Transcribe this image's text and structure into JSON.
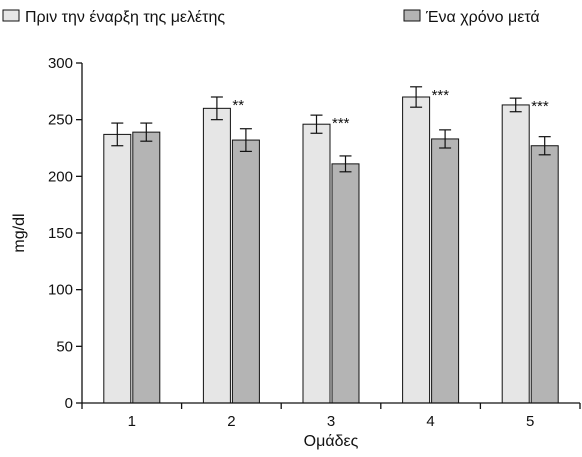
{
  "chart_data": {
    "type": "bar",
    "categories": [
      "1",
      "2",
      "3",
      "4",
      "5"
    ],
    "series": [
      {
        "name": "Πριν την έναρξη της μελέτης",
        "color": "#e6e6e6",
        "values": [
          237,
          260,
          246,
          270,
          263
        ],
        "errors": [
          10,
          10,
          8,
          9,
          6
        ]
      },
      {
        "name": "Ένα χρόνο μετά",
        "color": "#b4b4b4",
        "values": [
          239,
          232,
          211,
          233,
          227
        ],
        "errors": [
          8,
          10,
          7,
          8,
          8
        ]
      }
    ],
    "annotations": [
      "",
      "**",
      "***",
      "***",
      "***"
    ],
    "xlabel": "Ομάδες",
    "ylabel": "mg/dl",
    "ylim": [
      0,
      300
    ],
    "yticks": [
      "0",
      "50",
      "100",
      "150",
      "200",
      "250",
      "300"
    ],
    "grid": false,
    "legend_position": "top"
  }
}
